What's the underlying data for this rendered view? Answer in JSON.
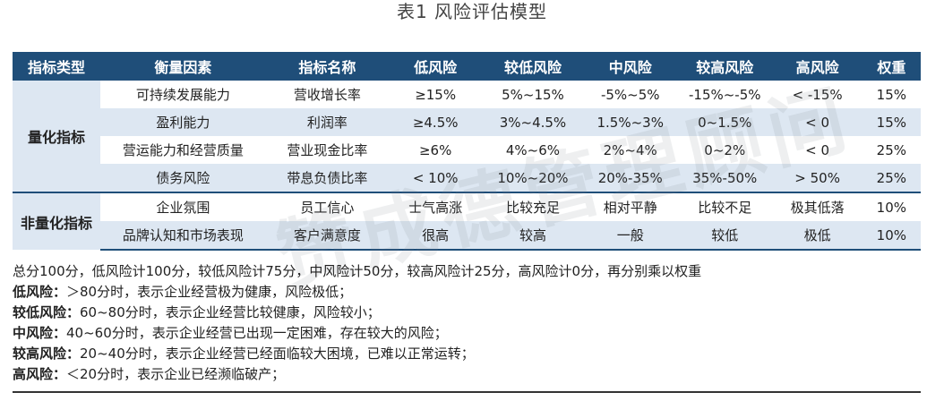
{
  "title": "表1  风险评估模型",
  "headers": [
    "指标类型",
    "衡量因素",
    "指标名称",
    "低风险",
    "较低风险",
    "中风险",
    "较高风险",
    "高风险",
    "权重"
  ],
  "groups": [
    {
      "category": "量化指标",
      "rows": [
        [
          "可持续发展能力",
          "营收增长率",
          "≥15%",
          "5%~15%",
          "-5%~5%",
          "-15%~-5%",
          "< -15%",
          "15%"
        ],
        [
          "盈利能力",
          "利润率",
          "≥4.5%",
          "3%~4.5%",
          "1.5%~3%",
          "0~1.5%",
          "< 0",
          "15%"
        ],
        [
          "营运能力和经营质量",
          "营业现金比率",
          "≥6%",
          "4%~6%",
          "2%~4%",
          "0~2%",
          "< 0",
          "25%"
        ],
        [
          "债务风险",
          "带息负债比率",
          "< 10%",
          "10%~20%",
          "20%-35%",
          "35%-50%",
          "> 50%",
          "25%"
        ]
      ]
    },
    {
      "category": "非量化指标",
      "rows": [
        [
          "企业氛围",
          "员工信心",
          "士气高涨",
          "比较充足",
          "相对平静",
          "比较不足",
          "极其低落",
          "10%"
        ],
        [
          "品牌认知和市场表现",
          "客户满意度",
          "很高",
          "较高",
          "一般",
          "较低",
          "极低",
          "10%"
        ]
      ]
    }
  ],
  "watermark": "赞成德管理顾问",
  "notes": {
    "summary": "总分100分，低风险计100分，较低风险计75分，中风险计50分，较高风险计25分，高风险计0分，再分别乘以权重",
    "items": [
      {
        "label": "低风险：",
        "text": "＞80分时，表示企业经营极为健康，风险极低；"
      },
      {
        "label": "较低风险：",
        "text": "60~80分时，表示企业经营比较健康，风险较小；"
      },
      {
        "label": "中风险：",
        "text": "40~60分时，表示企业经营已出现一定困难，存在较大的风险；"
      },
      {
        "label": "较高风险：",
        "text": "20~40分时，表示企业经营已经面临较大困境，已难以正常运转；"
      },
      {
        "label": "高风险：",
        "text": "＜20分时，表示企业已经濒临破产；"
      }
    ]
  }
}
